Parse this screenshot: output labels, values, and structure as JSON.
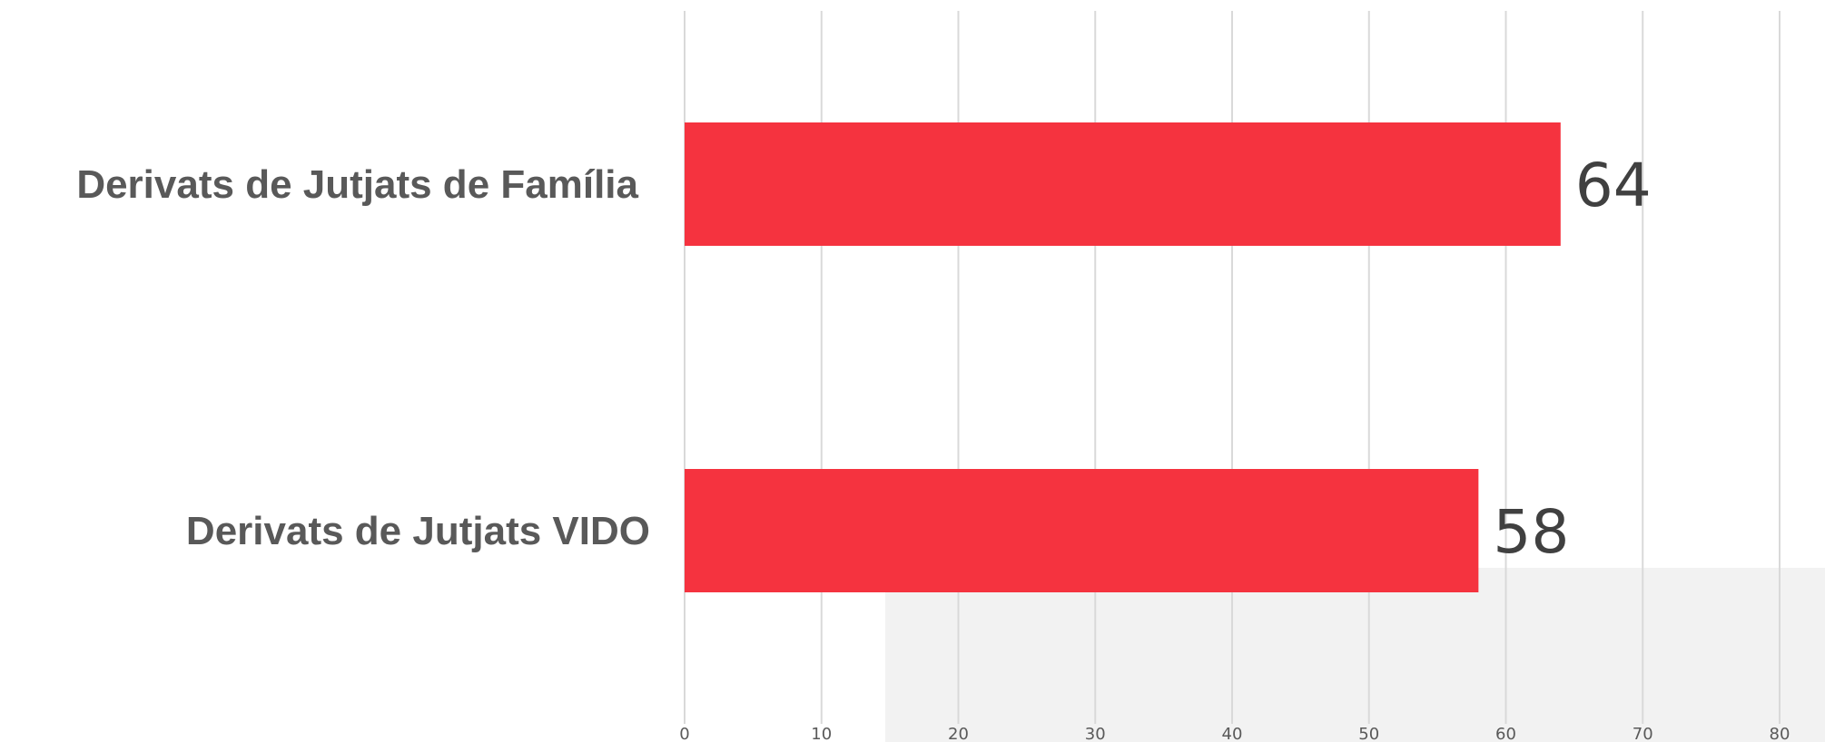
{
  "chart_data": {
    "type": "bar",
    "orientation": "horizontal",
    "categories": [
      "Derivats de Jutjats de Família",
      "Derivats de Jutjats VIDO"
    ],
    "values": [
      64,
      58
    ],
    "data_labels": [
      "64",
      "58"
    ],
    "x_ticks": [
      "0",
      "10",
      "20",
      "30",
      "40",
      "50",
      "60",
      "70",
      "80"
    ],
    "xlim": [
      0,
      80
    ],
    "grid": "vertical",
    "legend": "none",
    "colors": {
      "bar": "#f5333f",
      "grid": "#d9d9d9",
      "category_text": "#595959",
      "value_text": "#404040",
      "panel": "#f2f2f2"
    }
  }
}
